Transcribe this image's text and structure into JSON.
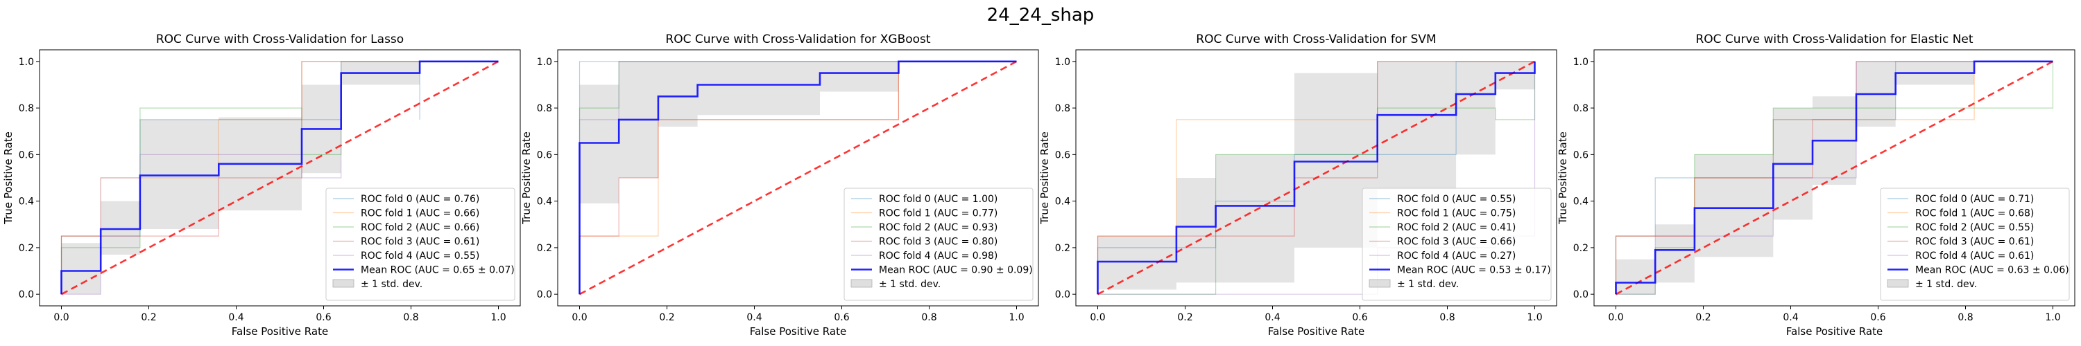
{
  "figure": {
    "title": "24_24_shap"
  },
  "colors": {
    "fold": [
      "#1f77b4",
      "#ff7f0e",
      "#2ca02c",
      "#d62728",
      "#9467bd"
    ],
    "mean": "#0000ff",
    "chance": "#ff0000",
    "band": "#bfbfbf"
  },
  "chart_data": [
    {
      "type": "line",
      "title": "ROC Curve with Cross-Validation for Lasso",
      "xlabel": "False Positive Rate",
      "ylabel": "True Positive Rate",
      "xlim": [
        -0.05,
        1.05
      ],
      "ylim": [
        -0.05,
        1.05
      ],
      "xticks": [
        "0.0",
        "0.2",
        "0.4",
        "0.6",
        "0.8",
        "1.0"
      ],
      "yticks": [
        "0.0",
        "0.2",
        "0.4",
        "0.6",
        "0.8",
        "1.0"
      ],
      "legend_position": "lower-right",
      "series": [
        {
          "name": "ROC fold 0 (AUC = 0.76)",
          "x": [
            0,
            0,
            0.18,
            0.18,
            0.64,
            0.64,
            0.82,
            0.82,
            0.82,
            1.0
          ],
          "y": [
            0,
            0.25,
            0.25,
            0.75,
            0.75,
            0.95,
            0.95,
            0.75,
            1.0,
            1.0
          ]
        },
        {
          "name": "ROC fold 1 (AUC = 0.66)",
          "x": [
            0,
            0,
            0.09,
            0.09,
            0.36,
            0.36,
            0.55,
            0.55,
            1.0
          ],
          "y": [
            0,
            0.25,
            0.25,
            0.5,
            0.5,
            0.75,
            0.75,
            1.0,
            1.0
          ]
        },
        {
          "name": "ROC fold 2 (AUC = 0.66)",
          "x": [
            0,
            0,
            0.18,
            0.18,
            0.55,
            0.55,
            0.64,
            0.64,
            1.0
          ],
          "y": [
            0,
            0.2,
            0.2,
            0.8,
            0.8,
            0.6,
            0.6,
            1.0,
            1.0
          ]
        },
        {
          "name": "ROC fold 3 (AUC = 0.61)",
          "x": [
            0,
            0,
            0.09,
            0.09,
            0.36,
            0.36,
            0.55,
            0.55,
            1.0
          ],
          "y": [
            0,
            0.25,
            0.25,
            0.25,
            0.25,
            0.5,
            0.5,
            1.0,
            1.0
          ]
        },
        {
          "name": "ROC fold 4 (AUC = 0.55)",
          "x": [
            0,
            0,
            0.09,
            0.09,
            0.18,
            0.18,
            0.55,
            0.55,
            0.64,
            0.64,
            1.0
          ],
          "y": [
            0,
            0,
            0,
            0.5,
            0.5,
            0.6,
            0.6,
            0.5,
            0.5,
            1.0,
            1.0
          ]
        }
      ],
      "mean": {
        "name": "Mean ROC (AUC = 0.65 ± 0.07)",
        "x": [
          0,
          0,
          0.09,
          0.09,
          0.18,
          0.18,
          0.36,
          0.36,
          0.55,
          0.55,
          0.64,
          0.64,
          0.82,
          0.82,
          1.0
        ],
        "y": [
          0,
          0.1,
          0.1,
          0.28,
          0.28,
          0.51,
          0.51,
          0.56,
          0.56,
          0.71,
          0.71,
          0.95,
          0.95,
          1.0,
          1.0
        ]
      },
      "band": {
        "name": "± 1 std. dev.",
        "x": [
          0,
          0.09,
          0.09,
          0.18,
          0.18,
          0.36,
          0.36,
          0.55,
          0.55,
          0.64,
          0.64,
          0.82,
          0.82,
          1.0
        ],
        "upper": [
          0.22,
          0.22,
          0.4,
          0.4,
          0.75,
          0.75,
          0.76,
          0.76,
          0.9,
          0.9,
          1.0,
          1.0,
          1.0,
          1.0
        ],
        "lower": [
          0,
          0,
          0.17,
          0.17,
          0.28,
          0.28,
          0.36,
          0.36,
          0.52,
          0.52,
          0.9,
          0.9,
          1.0,
          1.0
        ]
      },
      "chance": {
        "x": [
          0,
          1
        ],
        "y": [
          0,
          1
        ]
      }
    },
    {
      "type": "line",
      "title": "ROC Curve with Cross-Validation for XGBoost",
      "xlabel": "False Positive Rate",
      "ylabel": "True Positive Rate",
      "xlim": [
        -0.05,
        1.05
      ],
      "ylim": [
        -0.05,
        1.05
      ],
      "xticks": [
        "0.0",
        "0.2",
        "0.4",
        "0.6",
        "0.8",
        "1.0"
      ],
      "yticks": [
        "0.0",
        "0.2",
        "0.4",
        "0.6",
        "0.8",
        "1.0"
      ],
      "legend_position": "lower-right",
      "series": [
        {
          "name": "ROC fold 0 (AUC = 1.00)",
          "x": [
            0,
            0,
            1.0
          ],
          "y": [
            0,
            1.0,
            1.0
          ]
        },
        {
          "name": "ROC fold 1 (AUC = 0.77)",
          "x": [
            0,
            0,
            0.18,
            0.18,
            0.73,
            0.73,
            1.0
          ],
          "y": [
            0,
            0.25,
            0.25,
            0.75,
            0.75,
            1.0,
            1.0
          ]
        },
        {
          "name": "ROC fold 2 (AUC = 0.93)",
          "x": [
            0,
            0,
            0.09,
            0.09,
            1.0
          ],
          "y": [
            0,
            0.8,
            0.8,
            1.0,
            1.0
          ]
        },
        {
          "name": "ROC fold 3 (AUC = 0.80)",
          "x": [
            0,
            0,
            0.09,
            0.09,
            0.18,
            0.18,
            0.73,
            0.73,
            1.0
          ],
          "y": [
            0,
            0.25,
            0.25,
            0.5,
            0.5,
            0.75,
            0.75,
            1.0,
            1.0
          ]
        },
        {
          "name": "ROC fold 4 (AUC = 0.98)",
          "x": [
            0,
            0,
            0.09,
            0.09,
            1.0
          ],
          "y": [
            0,
            0.75,
            0.75,
            1.0,
            1.0
          ]
        }
      ],
      "mean": {
        "name": "Mean ROC (AUC = 0.90 ± 0.09)",
        "x": [
          0,
          0,
          0.09,
          0.09,
          0.18,
          0.18,
          0.27,
          0.27,
          0.55,
          0.55,
          0.73,
          0.73,
          1.0
        ],
        "y": [
          0,
          0.65,
          0.65,
          0.75,
          0.75,
          0.85,
          0.85,
          0.9,
          0.9,
          0.95,
          0.95,
          1.0,
          1.0
        ]
      },
      "band": {
        "name": "± 1 std. dev.",
        "x": [
          0,
          0.09,
          0.09,
          0.18,
          0.18,
          0.27,
          0.27,
          0.55,
          0.55,
          0.73,
          0.73,
          1.0
        ],
        "upper": [
          0.9,
          0.9,
          1.0,
          1.0,
          1.0,
          1.0,
          1.0,
          1.0,
          1.0,
          1.0,
          1.0,
          1.0
        ],
        "lower": [
          0.39,
          0.39,
          0.5,
          0.5,
          0.72,
          0.72,
          0.77,
          0.77,
          0.87,
          0.87,
          1.0,
          1.0
        ]
      },
      "chance": {
        "x": [
          0,
          1
        ],
        "y": [
          0,
          1
        ]
      }
    },
    {
      "type": "line",
      "title": "ROC Curve with Cross-Validation for SVM",
      "xlabel": "False Positive Rate",
      "ylabel": "True Positive Rate",
      "xlim": [
        -0.05,
        1.05
      ],
      "ylim": [
        -0.05,
        1.05
      ],
      "xticks": [
        "0.0",
        "0.2",
        "0.4",
        "0.6",
        "0.8",
        "1.0"
      ],
      "yticks": [
        "0.0",
        "0.2",
        "0.4",
        "0.6",
        "0.8",
        "1.0"
      ],
      "legend_position": "lower-right",
      "series": [
        {
          "name": "ROC fold 0 (AUC = 0.55)",
          "x": [
            0,
            0,
            0.27,
            0.27,
            0.45,
            0.45,
            0.82,
            0.82,
            1.0
          ],
          "y": [
            0,
            0.2,
            0.2,
            0.4,
            0.4,
            0.6,
            0.6,
            1.0,
            1.0
          ]
        },
        {
          "name": "ROC fold 1 (AUC = 0.75)",
          "x": [
            0,
            0,
            0.18,
            0.18,
            0.64,
            0.64,
            1.0
          ],
          "y": [
            0,
            0.25,
            0.25,
            0.75,
            0.75,
            1.0,
            1.0
          ]
        },
        {
          "name": "ROC fold 2 (AUC = 0.41)",
          "x": [
            0,
            0,
            0.27,
            0.27,
            0.64,
            0.64,
            0.91,
            0.91,
            1.0,
            1.0
          ],
          "y": [
            0,
            0,
            0,
            0.6,
            0.6,
            0.8,
            0.8,
            0.75,
            0.75,
            1.0
          ]
        },
        {
          "name": "ROC fold 3 (AUC = 0.66)",
          "x": [
            0,
            0,
            0.45,
            0.45,
            0.64,
            0.64,
            1.0
          ],
          "y": [
            0,
            0.25,
            0.25,
            0.5,
            0.5,
            1.0,
            1.0
          ]
        },
        {
          "name": "ROC fold 4 (AUC = 0.27)",
          "x": [
            0,
            0,
            0.64,
            0.64,
            0.91,
            0.91,
            1.0,
            1.0
          ],
          "y": [
            0,
            0,
            0,
            0.2,
            0.2,
            0.25,
            0.25,
            1.0
          ]
        }
      ],
      "mean": {
        "name": "Mean ROC (AUC = 0.53 ± 0.17)",
        "x": [
          0,
          0,
          0.18,
          0.18,
          0.27,
          0.27,
          0.45,
          0.45,
          0.64,
          0.64,
          0.82,
          0.82,
          0.91,
          0.91,
          1.0,
          1.0
        ],
        "y": [
          0,
          0.14,
          0.14,
          0.29,
          0.29,
          0.38,
          0.38,
          0.57,
          0.57,
          0.77,
          0.77,
          0.86,
          0.86,
          0.95,
          0.95,
          1.0
        ]
      },
      "band": {
        "name": "± 1 std. dev.",
        "x": [
          0,
          0.18,
          0.18,
          0.27,
          0.27,
          0.45,
          0.45,
          0.64,
          0.64,
          0.82,
          0.82,
          0.91,
          0.91,
          1.0
        ],
        "upper": [
          0.25,
          0.25,
          0.5,
          0.5,
          0.6,
          0.6,
          0.95,
          0.95,
          1.0,
          1.0,
          1.0,
          1.0,
          1.0,
          1.0
        ],
        "lower": [
          0.02,
          0.02,
          0.05,
          0.05,
          0.05,
          0.05,
          0.2,
          0.2,
          0.45,
          0.45,
          0.6,
          0.6,
          0.88,
          0.88
        ]
      },
      "chance": {
        "x": [
          0,
          1
        ],
        "y": [
          0,
          1
        ]
      }
    },
    {
      "type": "line",
      "title": "ROC Curve with Cross-Validation for Elastic Net",
      "xlabel": "False Positive Rate",
      "ylabel": "True Positive Rate",
      "xlim": [
        -0.05,
        1.05
      ],
      "ylim": [
        -0.05,
        1.05
      ],
      "xticks": [
        "0.0",
        "0.2",
        "0.4",
        "0.6",
        "0.8",
        "1.0"
      ],
      "yticks": [
        "0.0",
        "0.2",
        "0.4",
        "0.6",
        "0.8",
        "1.0"
      ],
      "legend_position": "lower-right",
      "series": [
        {
          "name": "ROC fold 0 (AUC = 0.71)",
          "x": [
            0,
            0,
            0.09,
            0.09,
            0.36,
            0.36,
            0.55,
            0.55,
            0.64,
            0.64,
            1.0
          ],
          "y": [
            0,
            0.25,
            0.25,
            0.5,
            0.5,
            0.75,
            0.75,
            0.75,
            0.75,
            1.0,
            1.0
          ]
        },
        {
          "name": "ROC fold 1 (AUC = 0.68)",
          "x": [
            0,
            0,
            0.18,
            0.18,
            0.36,
            0.36,
            0.55,
            0.55,
            0.82,
            0.82,
            1.0
          ],
          "y": [
            0,
            0.25,
            0.25,
            0.5,
            0.5,
            0.75,
            0.75,
            0.75,
            0.75,
            1.0,
            1.0
          ]
        },
        {
          "name": "ROC fold 2 (AUC = 0.55)",
          "x": [
            0,
            0,
            0.09,
            0.09,
            0.18,
            0.18,
            0.36,
            0.36,
            0.64,
            0.64,
            1.0,
            1.0
          ],
          "y": [
            0,
            0,
            0,
            0.2,
            0.2,
            0.6,
            0.6,
            0.8,
            0.8,
            0.8,
            0.8,
            1.0
          ]
        },
        {
          "name": "ROC fold 3 (AUC = 0.61)",
          "x": [
            0,
            0,
            0.18,
            0.18,
            0.45,
            0.45,
            0.55,
            0.55,
            1.0
          ],
          "y": [
            0,
            0.25,
            0.25,
            0.5,
            0.5,
            0.75,
            0.75,
            1.0,
            1.0
          ]
        },
        {
          "name": "ROC fold 4 (AUC = 0.61)",
          "x": [
            0,
            0,
            0.09,
            0.09,
            0.36,
            0.36,
            0.55,
            0.55,
            1.0
          ],
          "y": [
            0,
            0,
            0,
            0.25,
            0.25,
            0.5,
            0.5,
            1.0,
            1.0
          ]
        }
      ],
      "mean": {
        "name": "Mean ROC (AUC = 0.63 ± 0.06)",
        "x": [
          0,
          0,
          0.09,
          0.09,
          0.18,
          0.18,
          0.36,
          0.36,
          0.45,
          0.45,
          0.55,
          0.55,
          0.64,
          0.64,
          0.82,
          0.82,
          1.0
        ],
        "y": [
          0,
          0.05,
          0.05,
          0.19,
          0.19,
          0.37,
          0.37,
          0.56,
          0.56,
          0.66,
          0.66,
          0.86,
          0.86,
          0.95,
          0.95,
          1.0,
          1.0
        ]
      },
      "band": {
        "name": "± 1 std. dev.",
        "x": [
          0,
          0.09,
          0.09,
          0.18,
          0.18,
          0.36,
          0.36,
          0.45,
          0.45,
          0.55,
          0.55,
          0.64,
          0.64,
          0.82,
          0.82,
          1.0
        ],
        "upper": [
          0.15,
          0.15,
          0.3,
          0.3,
          0.6,
          0.6,
          0.8,
          0.8,
          0.85,
          0.85,
          1.0,
          1.0,
          1.0,
          1.0,
          1.0,
          1.0
        ],
        "lower": [
          0,
          0,
          0.05,
          0.05,
          0.16,
          0.16,
          0.32,
          0.32,
          0.47,
          0.47,
          0.72,
          0.72,
          0.9,
          0.9,
          1.0,
          1.0
        ]
      },
      "chance": {
        "x": [
          0,
          1
        ],
        "y": [
          0,
          1
        ]
      }
    }
  ]
}
